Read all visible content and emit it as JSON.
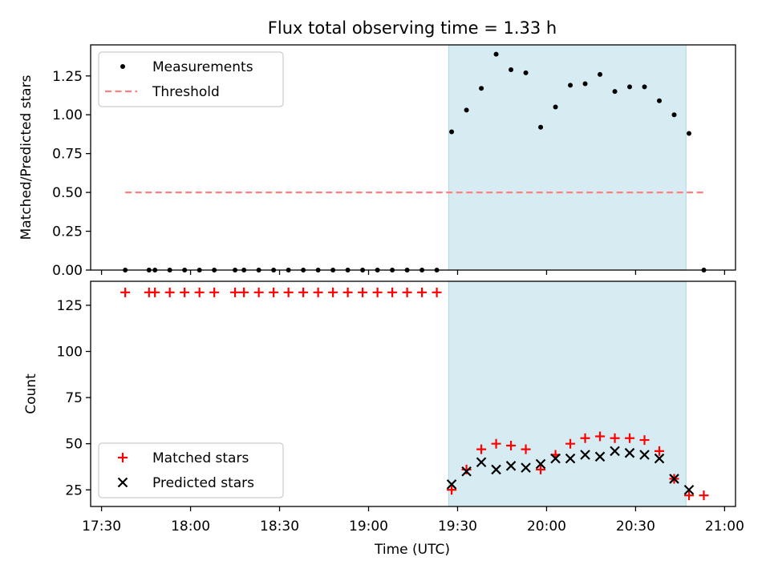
{
  "chart_data": [
    {
      "type": "scatter",
      "title": "Flux total observing time = 1.33 h",
      "xlabel": "",
      "ylabel": "Matched/Predicted stars",
      "x_type": "time",
      "xlim": [
        "17:30",
        "21:00"
      ],
      "ylim": [
        0,
        1.45
      ],
      "yticks": [
        0.0,
        0.25,
        0.5,
        0.75,
        1.0,
        1.25
      ],
      "ytick_labels": [
        "0.00",
        "0.25",
        "0.50",
        "0.75",
        "1.00",
        "1.25"
      ],
      "grid": false,
      "legend": "top-left",
      "shaded_region": {
        "x_start": "19:27",
        "x_end": "20:47",
        "color": "#add8e6"
      },
      "series": [
        {
          "name": "Measurements",
          "color": "#000000",
          "marker": "dot",
          "x": [
            "17:38",
            "17:46",
            "17:48",
            "17:53",
            "17:58",
            "18:03",
            "18:08",
            "18:15",
            "18:18",
            "18:23",
            "18:28",
            "18:33",
            "18:38",
            "18:43",
            "18:48",
            "18:53",
            "18:58",
            "19:03",
            "19:08",
            "19:13",
            "19:18",
            "19:23",
            "19:28",
            "19:33",
            "19:38",
            "19:43",
            "19:48",
            "19:53",
            "19:58",
            "20:03",
            "20:08",
            "20:13",
            "20:18",
            "20:23",
            "20:28",
            "20:33",
            "20:38",
            "20:43",
            "20:48",
            "20:53"
          ],
          "values": [
            0,
            0,
            0,
            0,
            0,
            0,
            0,
            0,
            0,
            0,
            0,
            0,
            0,
            0,
            0,
            0,
            0,
            0,
            0,
            0,
            0,
            0,
            0.89,
            1.03,
            1.17,
            1.39,
            1.29,
            1.27,
            0.92,
            1.05,
            1.19,
            1.2,
            1.26,
            1.15,
            1.18,
            1.18,
            1.09,
            1.0,
            0.88,
            0
          ]
        },
        {
          "name": "Threshold",
          "color": "#ff8080",
          "style": "dashed",
          "x": [
            "17:38",
            "20:53"
          ],
          "values": [
            0.5,
            0.5
          ]
        }
      ]
    },
    {
      "type": "scatter",
      "title": "",
      "xlabel": "Time (UTC)",
      "ylabel": "Count",
      "x_type": "time",
      "xlim": [
        "17:30",
        "21:00"
      ],
      "xticks": [
        "17:30",
        "18:00",
        "18:30",
        "19:00",
        "19:30",
        "20:00",
        "20:30",
        "21:00"
      ],
      "ylim": [
        16,
        138
      ],
      "yticks": [
        25,
        50,
        75,
        100,
        125
      ],
      "grid": false,
      "legend": "bottom-left",
      "shaded_region": {
        "x_start": "19:27",
        "x_end": "20:47",
        "color": "#add8e6"
      },
      "series": [
        {
          "name": "Matched stars",
          "color": "#ff0000",
          "marker": "plus",
          "x": [
            "17:38",
            "17:46",
            "17:48",
            "17:53",
            "17:58",
            "18:03",
            "18:08",
            "18:15",
            "18:18",
            "18:23",
            "18:28",
            "18:33",
            "18:38",
            "18:43",
            "18:48",
            "18:53",
            "18:58",
            "19:03",
            "19:08",
            "19:13",
            "19:18",
            "19:23",
            "19:28",
            "19:33",
            "19:38",
            "19:43",
            "19:48",
            "19:53",
            "19:58",
            "20:03",
            "20:08",
            "20:13",
            "20:18",
            "20:23",
            "20:28",
            "20:33",
            "20:38",
            "20:43",
            "20:48",
            "20:53"
          ],
          "values": [
            132,
            132,
            132,
            132,
            132,
            132,
            132,
            132,
            132,
            132,
            132,
            132,
            132,
            132,
            132,
            132,
            132,
            132,
            132,
            132,
            132,
            132,
            25,
            36,
            47,
            50,
            49,
            47,
            36,
            44,
            50,
            53,
            54,
            53,
            53,
            52,
            46,
            31,
            22,
            22
          ]
        },
        {
          "name": "Predicted stars",
          "color": "#000000",
          "marker": "x",
          "x": [
            "19:28",
            "19:33",
            "19:38",
            "19:43",
            "19:48",
            "19:53",
            "19:58",
            "20:03",
            "20:08",
            "20:13",
            "20:18",
            "20:23",
            "20:28",
            "20:33",
            "20:38",
            "20:43",
            "20:48"
          ],
          "values": [
            28,
            35,
            40,
            36,
            38,
            37,
            39,
            42,
            42,
            44,
            43,
            46,
            45,
            44,
            42,
            31,
            25
          ]
        }
      ]
    }
  ]
}
